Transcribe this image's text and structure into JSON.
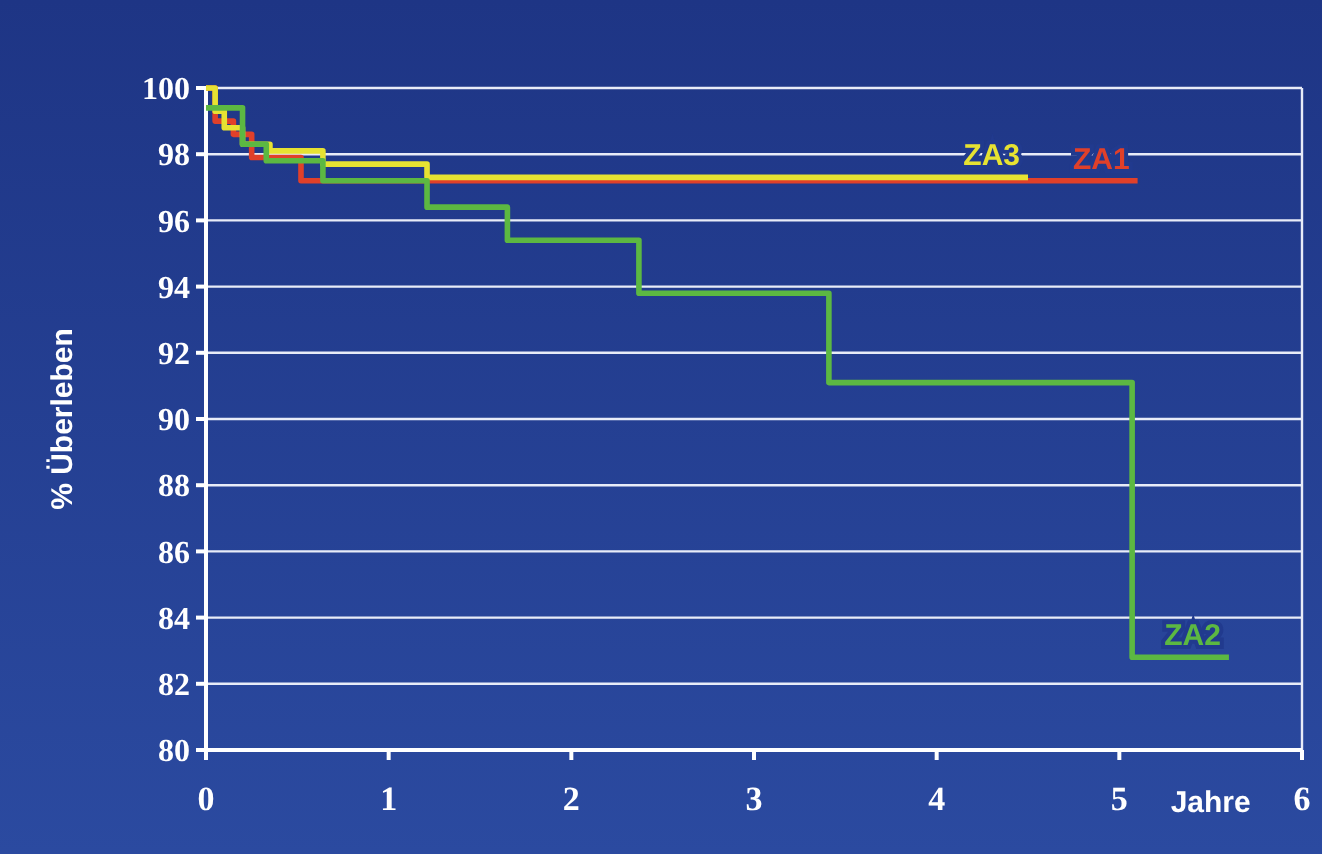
{
  "chart_data": {
    "type": "step",
    "xlabel": "Jahre",
    "ylabel": "% Überleben",
    "xlim": [
      0,
      6
    ],
    "xticks": [
      0,
      1,
      2,
      3,
      4,
      5,
      6
    ],
    "ylim": [
      80,
      100
    ],
    "yticks": [
      80,
      82,
      84,
      86,
      88,
      90,
      92,
      94,
      96,
      98,
      100
    ],
    "grid": "y",
    "series": [
      {
        "name": "ZA1",
        "color": "#e0402a",
        "x": [
          0,
          0.05,
          0.15,
          0.25,
          0.52,
          5.1
        ],
        "values": [
          100,
          99,
          98.6,
          97.9,
          97.2,
          97.2
        ]
      },
      {
        "name": "ZA3",
        "color": "#e6e232",
        "x": [
          0,
          0.05,
          0.1,
          0.2,
          0.35,
          0.64,
          1.21,
          4.5
        ],
        "values": [
          100,
          99.3,
          98.8,
          98.3,
          98.1,
          97.7,
          97.3,
          97.3
        ]
      },
      {
        "name": "ZA2",
        "color": "#5cb842",
        "x": [
          0,
          0.2,
          0.33,
          0.64,
          1.21,
          1.65,
          2.37,
          3.41,
          5.07,
          5.6
        ],
        "values": [
          99.4,
          98.3,
          97.8,
          97.2,
          96.4,
          95.4,
          93.8,
          91.1,
          82.8,
          82.8
        ]
      }
    ]
  }
}
